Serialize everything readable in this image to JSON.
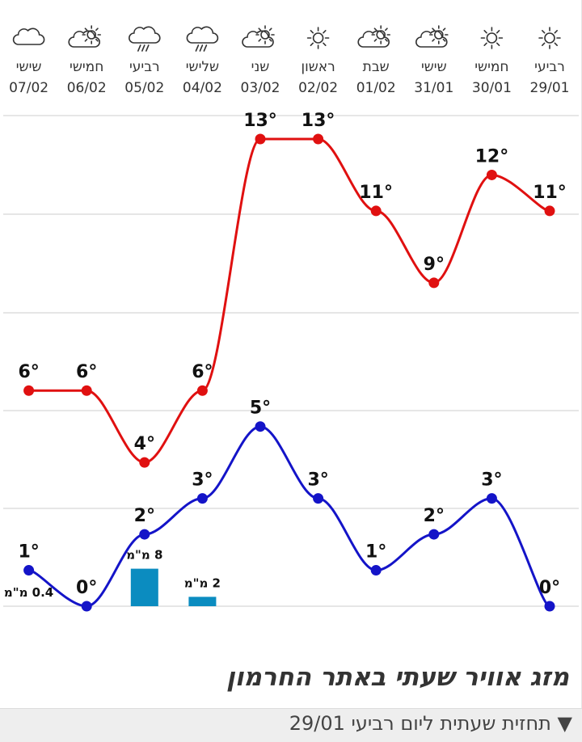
{
  "chart_data": {
    "type": "line",
    "categories": [
      {
        "day": "רביעי",
        "date": "29/01",
        "icon": "sun-icon"
      },
      {
        "day": "חמישי",
        "date": "30/01",
        "icon": "sun-icon"
      },
      {
        "day": "שישי",
        "date": "31/01",
        "icon": "partly-cloudy-icon"
      },
      {
        "day": "שבת",
        "date": "01/02",
        "icon": "partly-cloudy-icon"
      },
      {
        "day": "ראשון",
        "date": "02/02",
        "icon": "sun-icon"
      },
      {
        "day": "שני",
        "date": "03/02",
        "icon": "partly-cloudy-icon"
      },
      {
        "day": "שלישי",
        "date": "04/02",
        "icon": "rain-icon"
      },
      {
        "day": "רביעי",
        "date": "05/02",
        "icon": "rain-icon"
      },
      {
        "day": "חמישי",
        "date": "06/02",
        "icon": "partly-cloudy-icon"
      },
      {
        "day": "שישי",
        "date": "07/02",
        "icon": "cloud-icon"
      }
    ],
    "series": [
      {
        "color": "#e01010",
        "values": [
          11,
          12,
          9,
          11,
          13,
          13,
          6,
          4,
          6,
          6
        ],
        "labels": [
          "11°",
          "12°",
          "9°",
          "11°",
          "13°",
          "13°",
          "6°",
          "4°",
          "6°",
          "6°"
        ]
      },
      {
        "color": "#1414c8",
        "values": [
          0,
          3,
          2,
          1,
          3,
          5,
          3,
          2,
          0,
          1
        ],
        "labels": [
          "0°",
          "3°",
          "2°",
          "1°",
          "3°",
          "5°",
          "3°",
          "2°",
          "0°",
          "1°"
        ]
      }
    ],
    "precipitation": {
      "color": "#0b8cc0",
      "values": [
        0,
        0,
        0,
        0,
        0,
        0,
        2,
        8,
        0,
        0.4
      ],
      "labels": [
        "",
        "",
        "",
        "",
        "",
        "",
        "2 מ\"מ",
        "8 מ\"מ",
        "",
        "0.4 מ\"מ"
      ]
    },
    "ylim": [
      0,
      13
    ],
    "grid": true
  },
  "section_title": "מזג אוויר שעתי באתר החרמון",
  "forecast_toggle": "▼ תחזית שעתית ליום רביעי 29/01"
}
